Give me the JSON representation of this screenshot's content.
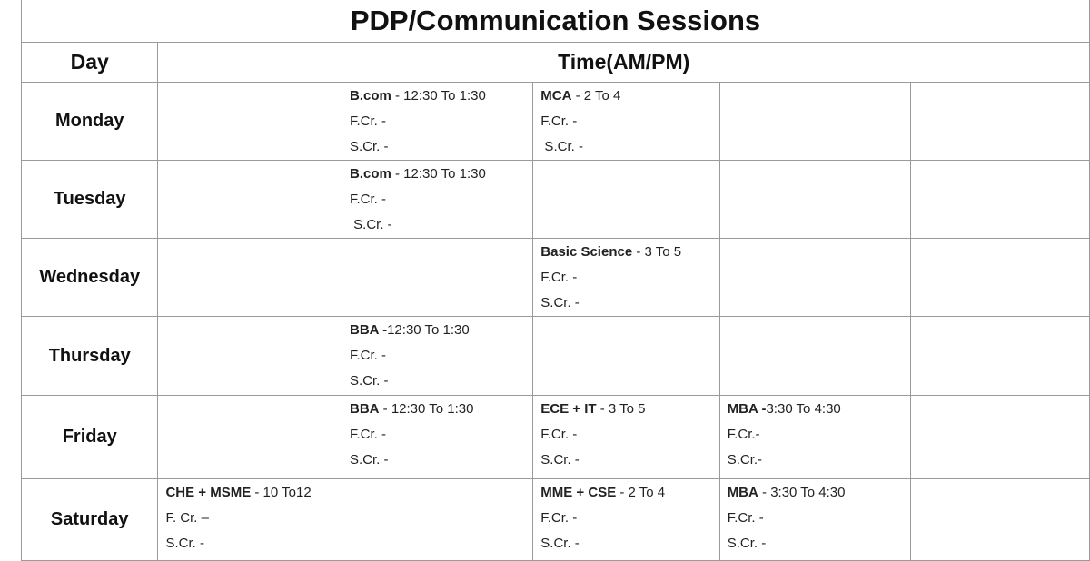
{
  "title": "PDP/Communication Sessions",
  "headers": {
    "day": "Day",
    "time": "Time(AM/PM)"
  },
  "rows": [
    {
      "day": "Monday",
      "cells": [
        null,
        {
          "program": "B.com",
          "time": " - 12:30 To 1:30",
          "fcr": "F.Cr. -",
          "scr": "S.Cr. -"
        },
        {
          "program": "MCA",
          "time": " - 2 To 4",
          "fcr": "F.Cr. -",
          "scr": " S.Cr. -"
        },
        null,
        null
      ]
    },
    {
      "day": "Tuesday",
      "cells": [
        null,
        {
          "program": "B.com",
          "time": " - 12:30 To 1:30",
          "fcr": "F.Cr. -",
          "scr": " S.Cr. -"
        },
        null,
        null,
        null
      ]
    },
    {
      "day": "Wednesday",
      "cells": [
        null,
        null,
        {
          "program": "Basic Science",
          "time": " - 3 To 5",
          "fcr": "F.Cr. -",
          "scr": "S.Cr. -"
        },
        null,
        null
      ]
    },
    {
      "day": "Thursday",
      "cells": [
        null,
        {
          "program": "BBA -",
          "time": "12:30 To 1:30",
          "fcr": "F.Cr. -",
          "scr": "S.Cr. -"
        },
        null,
        null,
        null
      ]
    },
    {
      "day": "Friday",
      "cells": [
        null,
        {
          "program": "BBA",
          "time": " - 12:30 To 1:30",
          "fcr": "F.Cr. -",
          "scr": "S.Cr. -"
        },
        {
          "program": "ECE + IT",
          "time": " - 3 To 5",
          "fcr": "F.Cr. -",
          "scr": "S.Cr. -"
        },
        {
          "program": "MBA -",
          "time": "3:30 To 4:30",
          "fcr": "F.Cr.-",
          "scr": "S.Cr.-"
        },
        null
      ]
    },
    {
      "day": "Saturday",
      "cells": [
        {
          "program": "CHE + MSME",
          "time": " - 10 To12",
          "fcr": "F. Cr. –",
          "scr": "S.Cr. -"
        },
        null,
        {
          "program": "MME + CSE",
          "time": " - 2 To 4",
          "fcr": "F.Cr. -",
          "scr": "S.Cr. -"
        },
        {
          "program": "MBA",
          "time": " - 3:30 To 4:30",
          "fcr": "F.Cr. -",
          "scr": "S.Cr. -"
        },
        null
      ]
    }
  ]
}
